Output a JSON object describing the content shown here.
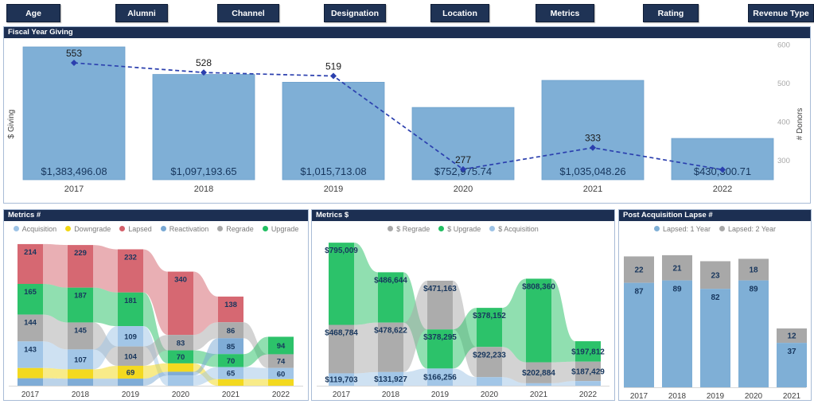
{
  "filters": [
    {
      "label": "Age"
    },
    {
      "label": "Alumni"
    },
    {
      "label": "Channel"
    },
    {
      "label": "Designation"
    },
    {
      "label": "Location"
    },
    {
      "label": "Metrics"
    },
    {
      "label": "Rating"
    },
    {
      "label": "Revenue Type"
    }
  ],
  "colors": {
    "header_navy": "#1c2f52",
    "button_navy": "#1f3355",
    "bar_blue": "#7fafd6",
    "bar_blue_border": "#6ea1cc",
    "donor_line": "#2b3fae",
    "acquisition": "#9dc3e6",
    "downgrade": "#f2d713",
    "lapsed": "#d4606a",
    "reactivation": "#78a8d4",
    "regrade": "#a8a8a8",
    "upgrade": "#21bf62",
    "value_text": "#17365d",
    "axis_text": "#a6a6a6",
    "year_text": "#3f3f3f"
  },
  "panels": {
    "fiscal": {
      "title": "Fiscal Year Giving"
    },
    "metrics_count": {
      "title": "Metrics #",
      "legend": [
        {
          "label": "Acquisition",
          "color": "#9dc3e6"
        },
        {
          "label": "Downgrade",
          "color": "#f2d713"
        },
        {
          "label": "Lapsed",
          "color": "#d4606a"
        },
        {
          "label": "Reactivation",
          "color": "#78a8d4"
        },
        {
          "label": "Regrade",
          "color": "#a8a8a8"
        },
        {
          "label": "Upgrade",
          "color": "#21bf62"
        }
      ]
    },
    "metrics_dollar": {
      "title": "Metrics $",
      "legend": [
        {
          "label": "$ Regrade",
          "color": "#a8a8a8"
        },
        {
          "label": "$ Upgrade",
          "color": "#21bf62"
        },
        {
          "label": "$ Acquisition",
          "color": "#9dc3e6"
        }
      ]
    },
    "lapse": {
      "title": "Post Acquisition Lapse #",
      "legend": [
        {
          "label": "Lapsed: 1 Year",
          "color": "#7fafd6"
        },
        {
          "label": "Lapsed: 2 Year",
          "color": "#a8a8a8"
        }
      ]
    }
  },
  "chart_data": [
    {
      "id": "fiscal",
      "type": "bar+line",
      "title": "Fiscal Year Giving",
      "categories": [
        "2017",
        "2018",
        "2019",
        "2020",
        "2021",
        "2022"
      ],
      "bar_series": {
        "name": "$ Giving",
        "values": [
          1383496.08,
          1097193.65,
          1015713.08,
          752975.74,
          1035048.26,
          430300.71
        ],
        "labels": [
          "$1,383,496.08",
          "$1,097,193.65",
          "$1,015,713.08",
          "$752,975.74",
          "$1,035,048.26",
          "$430,300.71"
        ]
      },
      "line_series": {
        "name": "# Donors",
        "values": [
          553,
          528,
          519,
          277,
          333,
          276
        ],
        "labels": [
          "553",
          "528",
          "519",
          "277",
          "333",
          ""
        ]
      },
      "left_axis_label": "$ Giving",
      "right_axis_label": "# Donors",
      "right_axis_ticks": [
        300,
        400,
        500,
        600
      ],
      "right_axis_range": [
        250,
        650
      ]
    },
    {
      "id": "metrics_count",
      "type": "flow",
      "title": "Metrics #",
      "categories": [
        "2017",
        "2018",
        "2019",
        "2020",
        "2021",
        "2022"
      ],
      "columns": [
        [
          {
            "cat": "Lapsed",
            "value": 214,
            "label": "214"
          },
          {
            "cat": "Upgrade",
            "value": 165,
            "label": "165"
          },
          {
            "cat": "Regrade",
            "value": 144,
            "label": "144"
          },
          {
            "cat": "Acquisition",
            "value": 143,
            "label": "143"
          },
          {
            "cat": "Downgrade",
            "value": 55,
            "label": ""
          },
          {
            "cat": "Reactivation",
            "value": 40,
            "label": ""
          }
        ],
        [
          {
            "cat": "Lapsed",
            "value": 229,
            "label": "229"
          },
          {
            "cat": "Upgrade",
            "value": 187,
            "label": "187"
          },
          {
            "cat": "Regrade",
            "value": 145,
            "label": "145"
          },
          {
            "cat": "Acquisition",
            "value": 107,
            "label": "107"
          },
          {
            "cat": "Downgrade",
            "value": 50,
            "label": ""
          },
          {
            "cat": "Reactivation",
            "value": 38,
            "label": ""
          }
        ],
        [
          {
            "cat": "Lapsed",
            "value": 232,
            "label": "232"
          },
          {
            "cat": "Upgrade",
            "value": 181,
            "label": "181"
          },
          {
            "cat": "Acquisition",
            "value": 109,
            "label": "109"
          },
          {
            "cat": "Regrade",
            "value": 104,
            "label": "104"
          },
          {
            "cat": "Downgrade",
            "value": 69,
            "label": "69"
          },
          {
            "cat": "Reactivation",
            "value": 38,
            "label": ""
          }
        ],
        [
          {
            "cat": "Lapsed",
            "value": 340,
            "label": "340"
          },
          {
            "cat": "Regrade",
            "value": 83,
            "label": "83"
          },
          {
            "cat": "Upgrade",
            "value": 70,
            "label": "70"
          },
          {
            "cat": "Downgrade",
            "value": 45,
            "label": ""
          },
          {
            "cat": "Reactivation",
            "value": 20,
            "label": ""
          },
          {
            "cat": "Acquisition",
            "value": 55,
            "label": ""
          }
        ],
        [
          {
            "cat": "Lapsed",
            "value": 138,
            "label": "138"
          },
          {
            "cat": "Regrade",
            "value": 86,
            "label": "86"
          },
          {
            "cat": "Reactivation",
            "value": 85,
            "label": "85"
          },
          {
            "cat": "Upgrade",
            "value": 70,
            "label": "70"
          },
          {
            "cat": "Acquisition",
            "value": 65,
            "label": "65"
          },
          {
            "cat": "Downgrade",
            "value": 35,
            "label": ""
          }
        ],
        [
          {
            "cat": "Upgrade",
            "value": 94,
            "label": "94"
          },
          {
            "cat": "Regrade",
            "value": 74,
            "label": "74"
          },
          {
            "cat": "Acquisition",
            "value": 60,
            "label": "60"
          },
          {
            "cat": "Downgrade",
            "value": 35,
            "label": ""
          }
        ]
      ]
    },
    {
      "id": "metrics_dollar",
      "type": "flow",
      "title": "Metrics $",
      "categories": [
        "2017",
        "2018",
        "2019",
        "2020",
        "2021",
        "2022"
      ],
      "columns": [
        [
          {
            "cat": "Upgrade",
            "value": 795009,
            "label": "$795,009"
          },
          {
            "cat": "Regrade",
            "value": 468784,
            "label": "$468,784"
          },
          {
            "cat": "Acquisition",
            "value": 119703,
            "label": "$119,703"
          }
        ],
        [
          {
            "cat": "Upgrade",
            "value": 486644,
            "label": "$486,644"
          },
          {
            "cat": "Regrade",
            "value": 478622,
            "label": "$478,622"
          },
          {
            "cat": "Acquisition",
            "value": 131927,
            "label": "$131,927"
          }
        ],
        [
          {
            "cat": "Regrade",
            "value": 471163,
            "label": "$471,163"
          },
          {
            "cat": "Upgrade",
            "value": 378295,
            "label": "$378,295"
          },
          {
            "cat": "Acquisition",
            "value": 166256,
            "label": "$166,256"
          }
        ],
        [
          {
            "cat": "Upgrade",
            "value": 378152,
            "label": "$378,152"
          },
          {
            "cat": "Regrade",
            "value": 292233,
            "label": "$292,233"
          },
          {
            "cat": "Acquisition",
            "value": 82590,
            "label": ""
          }
        ],
        [
          {
            "cat": "Upgrade",
            "value": 808360,
            "label": "$808,360"
          },
          {
            "cat": "Regrade",
            "value": 202884,
            "label": "$202,884"
          },
          {
            "cat": "Acquisition",
            "value": 23804,
            "label": ""
          }
        ],
        [
          {
            "cat": "Upgrade",
            "value": 197812,
            "label": "$197,812"
          },
          {
            "cat": "Regrade",
            "value": 187429,
            "label": "$187,429"
          },
          {
            "cat": "Acquisition",
            "value": 45059,
            "label": ""
          }
        ]
      ]
    },
    {
      "id": "lapse",
      "type": "stacked-bar",
      "title": "Post Acquisition Lapse #",
      "categories": [
        "2017",
        "2018",
        "2019",
        "2020",
        "2021"
      ],
      "series": [
        {
          "name": "Lapsed: 1 Year",
          "values": [
            87,
            89,
            82,
            89,
            37
          ]
        },
        {
          "name": "Lapsed: 2 Year",
          "values": [
            22,
            21,
            23,
            18,
            12
          ]
        }
      ]
    }
  ]
}
